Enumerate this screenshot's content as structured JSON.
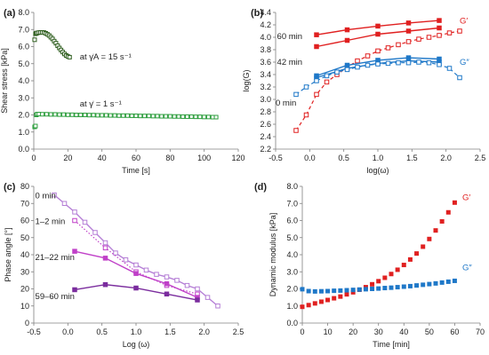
{
  "colors": {
    "green": "#2e9e3e",
    "darkGreen": "#2f5e1f",
    "red": "#e02020",
    "blue": "#1f78c8",
    "purple": "#7b2d9e",
    "magenta": "#c040c8",
    "lightPurple": "#b57fd6",
    "axis": "#808080"
  },
  "chart_data": [
    {
      "panel": "(a)",
      "type": "scatter",
      "xlabel": "Time [s]",
      "ylabel": "Shear stress [kPa]",
      "xlim": [
        0,
        120
      ],
      "ylim": [
        0,
        8
      ],
      "xticks": [
        "0",
        "20",
        "40",
        "60",
        "80",
        "100",
        "120"
      ],
      "yticks": [
        "0.0",
        "1.0",
        "2.0",
        "3.0",
        "4.0",
        "5.0",
        "6.0",
        "7.0",
        "8.0"
      ],
      "grid": false,
      "annotations": [
        {
          "text": "at γ̇A = 15 s⁻¹",
          "near": "upper series"
        },
        {
          "text": "at γ̇ = 1 s⁻¹",
          "near": "lower series"
        }
      ],
      "series": [
        {
          "color_key": "darkGreen",
          "marker": "open-square",
          "x": [
            0.5,
            1,
            1.5,
            2,
            3,
            4,
            5,
            6,
            7,
            8,
            9,
            10,
            11,
            12,
            13,
            14,
            15,
            16,
            17,
            18,
            19,
            20,
            21
          ],
          "y": [
            6.4,
            6.75,
            6.78,
            6.8,
            6.82,
            6.83,
            6.83,
            6.82,
            6.78,
            6.72,
            6.65,
            6.55,
            6.45,
            6.32,
            6.2,
            6.05,
            5.92,
            5.8,
            5.68,
            5.57,
            5.48,
            5.42,
            5.38
          ]
        },
        {
          "color_key": "green",
          "marker": "open-square",
          "x": [
            0.5,
            1,
            1.5,
            2,
            3,
            5,
            7.5,
            10,
            12.5,
            15,
            17.5,
            20,
            22.5,
            25,
            27.5,
            30,
            32.5,
            35,
            37.5,
            40,
            42.5,
            45,
            47.5,
            50,
            52.5,
            55,
            57.5,
            60,
            62.5,
            65,
            67.5,
            70,
            72.5,
            75,
            77.5,
            80,
            82.5,
            85,
            87.5,
            90,
            92.5,
            95,
            97.5,
            100,
            102.5,
            105,
            107
          ],
          "y": [
            1.3,
            1.35,
            2.0,
            2.05,
            2.05,
            2.04,
            2.04,
            2.03,
            2.03,
            2.02,
            2.02,
            2.01,
            2.01,
            2.0,
            2.0,
            2.0,
            1.99,
            1.99,
            1.98,
            1.98,
            1.98,
            1.97,
            1.97,
            1.96,
            1.96,
            1.96,
            1.95,
            1.95,
            1.94,
            1.94,
            1.94,
            1.93,
            1.93,
            1.92,
            1.92,
            1.92,
            1.91,
            1.91,
            1.9,
            1.9,
            1.9,
            1.89,
            1.89,
            1.88,
            1.88,
            1.87,
            1.87
          ]
        }
      ]
    },
    {
      "panel": "(b)",
      "type": "scatter",
      "xlabel": "log(ω)",
      "ylabel": "log(G)",
      "xlim": [
        -0.5,
        2.5
      ],
      "ylim": [
        2.2,
        4.4
      ],
      "xticks": [
        "-0.5",
        "0.0",
        "0.5",
        "1.0",
        "1.5",
        "2.0",
        "2.5"
      ],
      "yticks": [
        "2.2",
        "2.4",
        "2.6",
        "2.8",
        "3.0",
        "3.2",
        "3.4",
        "3.6",
        "3.8",
        "4.0",
        "4.2",
        "4.4"
      ],
      "grid": false,
      "annotations": [
        {
          "text": "G′",
          "color_key": "red"
        },
        {
          "text": "G″",
          "color_key": "blue"
        },
        {
          "text": "60 min"
        },
        {
          "text": "42 min"
        },
        {
          "text": "0 min"
        }
      ],
      "series": [
        {
          "color_key": "red",
          "marker": "filled-square",
          "line": "solid",
          "x": [
            0.1,
            0.55,
            1.0,
            1.45,
            1.9
          ],
          "y": [
            4.04,
            4.12,
            4.18,
            4.23,
            4.27
          ]
        },
        {
          "color_key": "red",
          "marker": "filled-square",
          "line": "solid",
          "x": [
            0.1,
            0.55,
            1.0,
            1.45,
            1.9
          ],
          "y": [
            3.85,
            3.95,
            4.05,
            4.1,
            4.15
          ]
        },
        {
          "color_key": "red",
          "marker": "open-square",
          "line": "dashed",
          "x": [
            -0.2,
            -0.05,
            0.1,
            0.25,
            0.4,
            0.55,
            0.7,
            0.85,
            1.0,
            1.15,
            1.3,
            1.45,
            1.6,
            1.75,
            1.9,
            2.05,
            2.2
          ],
          "y": [
            2.5,
            2.75,
            3.08,
            3.28,
            3.4,
            3.52,
            3.62,
            3.7,
            3.78,
            3.83,
            3.88,
            3.93,
            3.97,
            4.0,
            4.03,
            4.07,
            4.1
          ]
        },
        {
          "color_key": "blue",
          "marker": "filled-square",
          "line": "solid",
          "x": [
            0.1,
            0.55,
            1.0,
            1.45,
            1.9
          ],
          "y": [
            3.38,
            3.55,
            3.63,
            3.67,
            3.65
          ]
        },
        {
          "color_key": "blue",
          "marker": "filled-square",
          "line": "solid",
          "x": [
            0.1,
            0.55,
            1.0,
            1.45,
            1.9
          ],
          "y": [
            3.35,
            3.5,
            3.58,
            3.62,
            3.6
          ]
        },
        {
          "color_key": "blue",
          "marker": "open-square",
          "line": "dashed",
          "x": [
            -0.2,
            -0.05,
            0.1,
            0.25,
            0.4,
            0.55,
            0.7,
            0.85,
            1.0,
            1.15,
            1.3,
            1.45,
            1.6,
            1.75,
            1.9,
            2.05,
            2.2
          ],
          "y": [
            3.08,
            3.2,
            3.3,
            3.38,
            3.44,
            3.48,
            3.52,
            3.55,
            3.57,
            3.58,
            3.59,
            3.59,
            3.6,
            3.59,
            3.56,
            3.5,
            3.35
          ]
        }
      ]
    },
    {
      "panel": "(c)",
      "type": "line",
      "xlabel": "Log (ω)",
      "ylabel": "Phase angle [°]",
      "xlim": [
        -0.5,
        2.5
      ],
      "ylim": [
        0,
        80
      ],
      "xticks": [
        "-0.5",
        "0.0",
        "0.5",
        "1.0",
        "1.5",
        "2.0",
        "2.5"
      ],
      "yticks": [
        "0",
        "10",
        "20",
        "30",
        "40",
        "50",
        "60",
        "70",
        "80"
      ],
      "grid": false,
      "annotations": [
        {
          "text": "0 min"
        },
        {
          "text": "1–2 min"
        },
        {
          "text": "21–22 min"
        },
        {
          "text": "59–60 min"
        }
      ],
      "series": [
        {
          "color_key": "lightPurple",
          "marker": "open-square",
          "line": "solid",
          "x": [
            -0.2,
            -0.05,
            0.1,
            0.25,
            0.4,
            0.55,
            0.7,
            0.85,
            1.0,
            1.15,
            1.3,
            1.45,
            1.6,
            1.75,
            1.9,
            2.05,
            2.2
          ],
          "y": [
            75,
            70,
            65,
            59,
            53,
            47,
            41,
            37,
            34,
            31,
            28.5,
            27,
            25,
            22,
            20,
            15,
            10
          ]
        },
        {
          "color_key": "magenta",
          "marker": "open-square",
          "line": "dotted",
          "x": [
            0.1,
            0.55,
            1.0,
            1.45,
            1.9
          ],
          "y": [
            60,
            44,
            30,
            22,
            17
          ]
        },
        {
          "color_key": "magenta",
          "marker": "filled-square",
          "line": "solid",
          "x": [
            0.1,
            0.55,
            1.0,
            1.45,
            1.9
          ],
          "y": [
            42,
            38,
            29,
            23,
            15
          ]
        },
        {
          "color_key": "purple",
          "marker": "filled-square",
          "line": "solid",
          "x": [
            0.1,
            0.55,
            1.0,
            1.45,
            1.9
          ],
          "y": [
            19.5,
            22.5,
            20.5,
            17,
            13.5
          ]
        }
      ]
    },
    {
      "panel": "(d)",
      "type": "scatter",
      "xlabel": "Time [min]",
      "ylabel": "Dynamic modulus [kPa]",
      "xlim": [
        0,
        70
      ],
      "ylim": [
        0,
        8
      ],
      "xticks": [
        "0",
        "10",
        "20",
        "30",
        "40",
        "50",
        "60",
        "70"
      ],
      "yticks": [
        "0.0",
        "1.0",
        "2.0",
        "3.0",
        "4.0",
        "5.0",
        "6.0",
        "7.0",
        "8.0"
      ],
      "grid": false,
      "annotations": [
        {
          "text": "G′",
          "color_key": "red"
        },
        {
          "text": "G″",
          "color_key": "blue"
        }
      ],
      "series": [
        {
          "name": "G′",
          "color_key": "red",
          "marker": "filled-square",
          "x": [
            0,
            2.5,
            5,
            7.5,
            10,
            12.5,
            15,
            17.5,
            20,
            22.5,
            25,
            27.5,
            30,
            32.5,
            35,
            37.5,
            40,
            42.5,
            45,
            47.5,
            50,
            52.5,
            55,
            57.5,
            60
          ],
          "y": [
            0.95,
            1.05,
            1.15,
            1.25,
            1.35,
            1.45,
            1.55,
            1.68,
            1.8,
            1.95,
            2.1,
            2.27,
            2.45,
            2.65,
            2.87,
            3.12,
            3.4,
            3.72,
            4.07,
            4.47,
            4.92,
            5.42,
            5.95,
            6.48,
            7.05
          ]
        },
        {
          "name": "G″",
          "color_key": "blue",
          "marker": "filled-square",
          "x": [
            0,
            2.5,
            5,
            7.5,
            10,
            12.5,
            15,
            17.5,
            20,
            22.5,
            25,
            27.5,
            30,
            32.5,
            35,
            37.5,
            40,
            42.5,
            45,
            47.5,
            50,
            52.5,
            55,
            57.5,
            60
          ],
          "y": [
            1.98,
            1.87,
            1.85,
            1.86,
            1.87,
            1.89,
            1.9,
            1.92,
            1.94,
            1.96,
            1.98,
            2.0,
            2.02,
            2.05,
            2.07,
            2.1,
            2.13,
            2.16,
            2.2,
            2.24,
            2.28,
            2.32,
            2.37,
            2.42,
            2.47
          ]
        }
      ]
    }
  ]
}
